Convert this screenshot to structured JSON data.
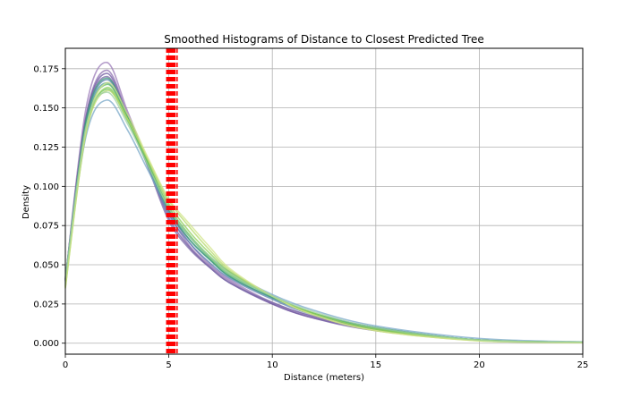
{
  "chart_data": {
    "type": "line",
    "title": "Smoothed Histograms of Distance to Closest Predicted Tree",
    "xlabel": "Distance (meters)",
    "ylabel": "Density",
    "xlim": [
      0,
      25
    ],
    "ylim": [
      -0.007,
      0.188
    ],
    "xticks": [
      0,
      5,
      10,
      15,
      20,
      25
    ],
    "xtick_labels": [
      "0",
      "5",
      "10",
      "15",
      "20",
      "25"
    ],
    "yticks": [
      0,
      0.025,
      0.05,
      0.075,
      0.1,
      0.125,
      0.15,
      0.175
    ],
    "ytick_labels": [
      "0.000",
      "0.025",
      "0.050",
      "0.075",
      "0.100",
      "0.125",
      "0.150",
      "0.175"
    ],
    "grid": true,
    "legend": "none",
    "series_x": [
      0,
      1,
      2,
      3,
      4,
      5,
      6,
      7,
      8,
      10,
      12,
      15,
      20,
      25
    ],
    "series": [
      {
        "color": "#9b7bb8",
        "values": [
          0.04,
          0.15,
          0.179,
          0.148,
          0.115,
          0.085,
          0.064,
          0.05,
          0.04,
          0.026,
          0.017,
          0.009,
          0.002,
          0.0005
        ]
      },
      {
        "color": "#8e6fb0",
        "values": [
          0.04,
          0.145,
          0.174,
          0.146,
          0.113,
          0.083,
          0.062,
          0.049,
          0.039,
          0.025,
          0.016,
          0.009,
          0.002,
          0.0005
        ]
      },
      {
        "color": "#6f58a0",
        "values": [
          0.041,
          0.144,
          0.172,
          0.145,
          0.113,
          0.08,
          0.061,
          0.048,
          0.038,
          0.025,
          0.016,
          0.008,
          0.002,
          0.0005
        ]
      },
      {
        "color": "#7a68a8",
        "values": [
          0.041,
          0.143,
          0.17,
          0.144,
          0.112,
          0.078,
          0.06,
          0.048,
          0.038,
          0.026,
          0.017,
          0.009,
          0.002,
          0.0006
        ]
      },
      {
        "color": "#5a7fb0",
        "values": [
          0.04,
          0.141,
          0.168,
          0.144,
          0.113,
          0.082,
          0.064,
          0.051,
          0.041,
          0.028,
          0.018,
          0.01,
          0.002,
          0.0006
        ]
      },
      {
        "color": "#7aa8c8",
        "values": [
          0.042,
          0.132,
          0.155,
          0.136,
          0.11,
          0.085,
          0.068,
          0.055,
          0.045,
          0.031,
          0.021,
          0.011,
          0.003,
          0.0008
        ]
      },
      {
        "color": "#4f9aa0",
        "values": [
          0.04,
          0.14,
          0.166,
          0.143,
          0.113,
          0.084,
          0.066,
          0.053,
          0.042,
          0.029,
          0.019,
          0.01,
          0.002,
          0.0007
        ]
      },
      {
        "color": "#3f9a7a",
        "values": [
          0.039,
          0.142,
          0.169,
          0.145,
          0.114,
          0.085,
          0.066,
          0.053,
          0.042,
          0.029,
          0.019,
          0.01,
          0.002,
          0.0006
        ]
      },
      {
        "color": "#5ab56a",
        "values": [
          0.038,
          0.138,
          0.165,
          0.144,
          0.115,
          0.086,
          0.068,
          0.054,
          0.043,
          0.03,
          0.019,
          0.009,
          0.002,
          0.0006
        ]
      },
      {
        "color": "#6cc060",
        "values": [
          0.037,
          0.136,
          0.162,
          0.142,
          0.114,
          0.087,
          0.069,
          0.055,
          0.044,
          0.03,
          0.019,
          0.009,
          0.002,
          0.0006
        ]
      },
      {
        "color": "#8fcf5a",
        "values": [
          0.036,
          0.135,
          0.163,
          0.143,
          0.116,
          0.089,
          0.071,
          0.057,
          0.045,
          0.03,
          0.019,
          0.009,
          0.002,
          0.0005
        ]
      },
      {
        "color": "#b5d96a",
        "values": [
          0.035,
          0.134,
          0.161,
          0.143,
          0.117,
          0.091,
          0.074,
          0.059,
          0.046,
          0.03,
          0.018,
          0.008,
          0.0015,
          0.0004
        ]
      },
      {
        "color": "#d2e48a",
        "values": [
          0.036,
          0.136,
          0.166,
          0.146,
          0.118,
          0.092,
          0.076,
          0.061,
          0.047,
          0.03,
          0.018,
          0.008,
          0.0015,
          0.0004
        ]
      },
      {
        "color": "#a0d0a0",
        "values": [
          0.041,
          0.138,
          0.16,
          0.14,
          0.113,
          0.086,
          0.068,
          0.055,
          0.044,
          0.03,
          0.02,
          0.01,
          0.002,
          0.0007
        ]
      }
    ],
    "threshold_lines": {
      "color": "#ff0000",
      "style": "dashed",
      "x": [
        4.9,
        4.95,
        5.0,
        5.05,
        5.1,
        5.15,
        5.2,
        5.25,
        5.3,
        5.4
      ]
    }
  }
}
